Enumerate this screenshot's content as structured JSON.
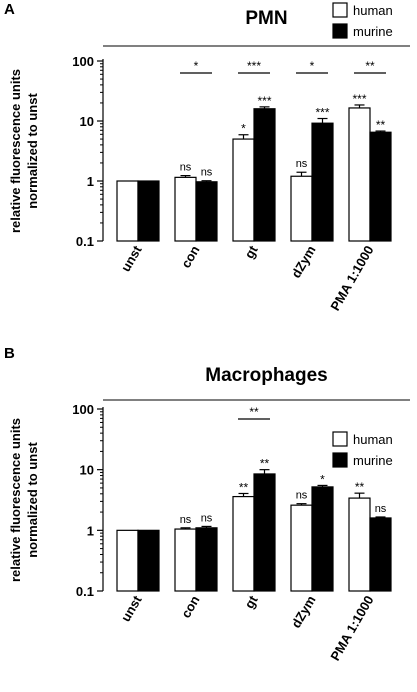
{
  "colors": {
    "human": "#ffffff",
    "murine": "#000000",
    "axis": "#000000",
    "background": "#ffffff"
  },
  "chart_data": [
    {
      "type": "bar",
      "panel": "A",
      "title": "PMN",
      "ylabel_lines": [
        "relative fluorescence units",
        "normalized to unst"
      ],
      "yscale": "log",
      "ylim": [
        0.1,
        100
      ],
      "yticks": [
        "0.1",
        "1",
        "10",
        "100"
      ],
      "categories": [
        "unst",
        "con",
        "gt",
        "dZym",
        "PMA 1:1000"
      ],
      "legend": {
        "position": "top-right",
        "entries": [
          "human",
          "murine"
        ]
      },
      "series": [
        {
          "name": "human",
          "values": [
            1.0,
            1.15,
            5.0,
            1.2,
            16.5
          ],
          "errors": [
            0.02,
            0.08,
            0.9,
            0.2,
            2.0
          ],
          "annotations": [
            "",
            "ns",
            "*",
            "ns",
            "***"
          ]
        },
        {
          "name": "murine",
          "values": [
            1.0,
            0.97,
            16.0,
            9.2,
            6.5
          ],
          "errors": [
            0.02,
            0.04,
            1.2,
            1.8,
            0.3
          ],
          "annotations": [
            "",
            "ns",
            "***",
            "***",
            "**"
          ]
        }
      ],
      "comparisons": [
        {
          "category": "con",
          "label": "*"
        },
        {
          "category": "gt",
          "label": "***"
        },
        {
          "category": "dZym",
          "label": "*"
        },
        {
          "category": "PMA 1:1000",
          "label": "**"
        }
      ]
    },
    {
      "type": "bar",
      "panel": "B",
      "title": "Macrophages",
      "ylabel_lines": [
        "relative fluorescence units",
        "normalized to unst"
      ],
      "yscale": "log",
      "ylim": [
        0.1,
        100
      ],
      "yticks": [
        "0.1",
        "1",
        "10",
        "100"
      ],
      "categories": [
        "unst",
        "con",
        "gt",
        "dZym",
        "PMA 1:1000"
      ],
      "legend": {
        "position": "top-right",
        "entries": [
          "human",
          "murine"
        ]
      },
      "series": [
        {
          "name": "human",
          "values": [
            1.0,
            1.05,
            3.6,
            2.6,
            3.4
          ],
          "errors": [
            0.02,
            0.05,
            0.45,
            0.15,
            0.7
          ],
          "annotations": [
            "",
            "ns",
            "**",
            "ns",
            "**"
          ]
        },
        {
          "name": "murine",
          "values": [
            1.0,
            1.1,
            8.5,
            5.2,
            1.6
          ],
          "errors": [
            0.02,
            0.06,
            1.5,
            0.3,
            0.06
          ],
          "annotations": [
            "",
            "ns",
            "**",
            "*",
            "ns"
          ]
        }
      ],
      "comparisons": [
        {
          "category": "gt",
          "label": "**"
        }
      ]
    }
  ]
}
